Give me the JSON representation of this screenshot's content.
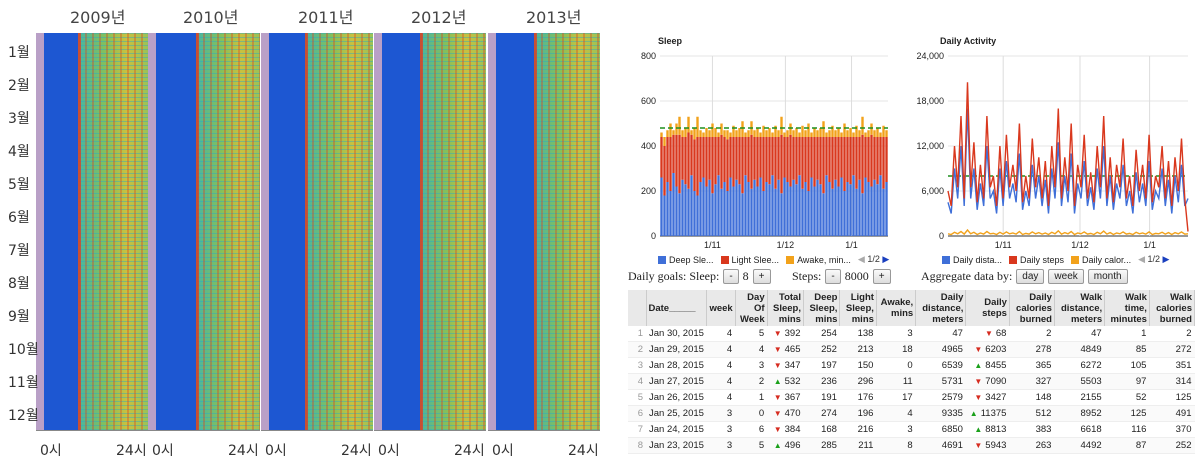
{
  "heatmap": {
    "years": [
      "2009년",
      "2010년",
      "2011년",
      "2012년",
      "2013년"
    ],
    "months": [
      "1월",
      "2월",
      "3월",
      "4월",
      "5월",
      "6월",
      "7월",
      "8월",
      "9월",
      "10월",
      "11월",
      "12월"
    ],
    "x_start": "0시",
    "x_end": "24시"
  },
  "chart_data": [
    {
      "type": "bar",
      "title": "Sleep",
      "stacked": true,
      "ylim": [
        0,
        800
      ],
      "yticks": [
        "800",
        "600",
        "400",
        "200",
        "0"
      ],
      "xticks": [
        "1/11",
        "1/12",
        "1/1"
      ],
      "goal_line": 480,
      "series": [
        {
          "name": "Deep Sle...",
          "color": "#3f6fd8",
          "values": [
            260,
            180,
            240,
            200,
            280,
            220,
            190,
            250,
            230,
            210,
            270,
            200,
            180,
            240,
            260,
            220,
            250,
            190,
            230,
            270,
            210,
            240,
            200,
            260,
            220,
            250,
            230,
            190,
            270,
            240,
            210,
            250,
            220,
            260,
            200,
            240,
            230,
            270,
            210,
            250,
            190,
            260,
            240,
            220,
            250,
            230,
            270,
            210,
            240,
            200,
            260,
            220,
            250,
            230,
            190,
            270,
            240,
            210,
            250,
            220,
            260,
            200,
            240,
            230,
            270,
            210,
            250,
            190,
            260,
            240,
            220,
            250,
            230,
            270,
            210,
            240
          ]
        },
        {
          "name": "Light Slee...",
          "color": "#d9381e",
          "values": [
            180,
            220,
            200,
            240,
            170,
            230,
            260,
            190,
            210,
            250,
            180,
            230,
            260,
            200,
            180,
            220,
            190,
            250,
            210,
            170,
            240,
            200,
            230,
            180,
            220,
            190,
            210,
            250,
            170,
            200,
            240,
            190,
            220,
            180,
            240,
            200,
            210,
            170,
            230,
            190,
            260,
            180,
            200,
            230,
            190,
            210,
            170,
            230,
            200,
            240,
            180,
            220,
            190,
            210,
            250,
            170,
            200,
            230,
            190,
            220,
            180,
            240,
            200,
            210,
            170,
            230,
            190,
            260,
            180,
            200,
            230,
            190,
            210,
            170,
            230,
            200
          ]
        },
        {
          "name": "Awake, min...",
          "color": "#f2a21b",
          "values": [
            20,
            40,
            30,
            60,
            20,
            50,
            80,
            30,
            40,
            70,
            20,
            50,
            90,
            30,
            20,
            40,
            30,
            60,
            40,
            20,
            50,
            30,
            40,
            20,
            50,
            30,
            40,
            70,
            20,
            30,
            60,
            30,
            40,
            20,
            50,
            30,
            40,
            20,
            50,
            30,
            80,
            20,
            30,
            50,
            30,
            40,
            20,
            50,
            30,
            60,
            20,
            40,
            30,
            40,
            70,
            20,
            30,
            50,
            30,
            40,
            20,
            60,
            30,
            40,
            20,
            50,
            30,
            80,
            20,
            30,
            50,
            30,
            40,
            20,
            50,
            30
          ]
        }
      ],
      "page": "1/2"
    },
    {
      "type": "line",
      "title": "Daily Activity",
      "ylim": [
        0,
        24000
      ],
      "yticks": [
        "24,000",
        "18,000",
        "12,000",
        "6,000",
        "0"
      ],
      "xticks": [
        "1/11",
        "1/12",
        "1/1"
      ],
      "goal_line": 8000,
      "series": [
        {
          "name": "Daily dista...",
          "color": "#3f6fd8",
          "values": [
            4500,
            3000,
            9000,
            5000,
            12000,
            4000,
            17000,
            5000,
            9000,
            3500,
            7000,
            4000,
            12000,
            5000,
            6000,
            3000,
            9000,
            4000,
            10000,
            5000,
            7000,
            4500,
            11000,
            3500,
            6000,
            4000,
            9500,
            5000,
            8000,
            4000,
            7500,
            3000,
            9000,
            5000,
            12500,
            4000,
            8000,
            4500,
            11000,
            3000,
            7000,
            5000,
            10000,
            4000,
            6500,
            3500,
            9000,
            5000,
            12000,
            4000,
            8000,
            3500,
            7000,
            5000,
            9500,
            4000,
            6000,
            3000,
            8500,
            4500,
            7000,
            4000,
            10000,
            3500,
            6000,
            5000,
            9000,
            4000,
            7500,
            3000,
            8000,
            4500,
            9500,
            4000,
            5000
          ]
        },
        {
          "name": "Daily steps",
          "color": "#d9381e",
          "values": [
            6000,
            4000,
            12000,
            6500,
            16000,
            5000,
            20500,
            6500,
            12500,
            4500,
            9500,
            5000,
            16000,
            6500,
            8000,
            4000,
            12000,
            5000,
            13500,
            6500,
            9500,
            6000,
            15000,
            4500,
            8000,
            5000,
            13000,
            6500,
            10500,
            5000,
            10000,
            4000,
            12000,
            6500,
            17000,
            5000,
            10500,
            6000,
            15000,
            4000,
            9500,
            6500,
            13500,
            5000,
            8500,
            4500,
            12000,
            6500,
            16000,
            5000,
            10500,
            4500,
            9500,
            6500,
            13000,
            5000,
            8000,
            4000,
            11500,
            6000,
            9500,
            5000,
            13500,
            4500,
            8000,
            6500,
            12000,
            5000,
            10000,
            4000,
            10500,
            6000,
            13000,
            5000,
            600
          ]
        },
        {
          "name": "Daily calor...",
          "color": "#f2a21b",
          "values": [
            300,
            200,
            500,
            300,
            600,
            250,
            800,
            300,
            500,
            200,
            400,
            250,
            600,
            300,
            350,
            200,
            500,
            250,
            550,
            300,
            400,
            250,
            600,
            200,
            350,
            250,
            550,
            300,
            450,
            250,
            400,
            200,
            500,
            300,
            700,
            250,
            450,
            300,
            600,
            200,
            400,
            300,
            550,
            250,
            350,
            200,
            500,
            300,
            650,
            250,
            450,
            200,
            400,
            300,
            550,
            250,
            350,
            200,
            500,
            300,
            400,
            250,
            550,
            200,
            350,
            300,
            500,
            250,
            450,
            200,
            450,
            300,
            550,
            250,
            300
          ]
        }
      ],
      "page": "1/2"
    }
  ],
  "controls": {
    "goals_label": "Daily goals: Sleep:",
    "sleep_minus": "-",
    "sleep_value": "8",
    "sleep_plus": "+",
    "steps_label": "Steps:",
    "steps_minus": "-",
    "steps_value": "8000",
    "steps_plus": "+",
    "aggregate_label": "Aggregate data by:",
    "agg_day": "day",
    "agg_week": "week",
    "agg_month": "month"
  },
  "table": {
    "headers": [
      "Date_____",
      "week",
      "Day Of Week",
      "Total Sleep, mins",
      "Deep Sleep, mins",
      "Light Sleep, mins",
      "Awake, mins",
      "Daily distance, meters",
      "Daily steps",
      "Daily calories burned",
      "Walk distance, meters",
      "Walk time, minutes",
      "Walk calories burned"
    ],
    "rows": [
      {
        "i": "1",
        "date": "Jan 30, 2015",
        "week": "4",
        "dow": "5",
        "ts_dir": "down",
        "total": "392",
        "deep": "254",
        "light": "138",
        "awake": "3",
        "dist": "47",
        "st_dir": "down",
        "steps": "68",
        "cal": "2",
        "wd": "47",
        "wt": "1",
        "wc": "2"
      },
      {
        "i": "2",
        "date": "Jan 29, 2015",
        "week": "4",
        "dow": "4",
        "ts_dir": "down",
        "total": "465",
        "deep": "252",
        "light": "213",
        "awake": "18",
        "dist": "4965",
        "st_dir": "down",
        "steps": "6203",
        "cal": "278",
        "wd": "4849",
        "wt": "85",
        "wc": "272"
      },
      {
        "i": "3",
        "date": "Jan 28, 2015",
        "week": "4",
        "dow": "3",
        "ts_dir": "down",
        "total": "347",
        "deep": "197",
        "light": "150",
        "awake": "0",
        "dist": "6539",
        "st_dir": "up",
        "steps": "8455",
        "cal": "365",
        "wd": "6272",
        "wt": "105",
        "wc": "351"
      },
      {
        "i": "4",
        "date": "Jan 27, 2015",
        "week": "4",
        "dow": "2",
        "ts_dir": "up",
        "total": "532",
        "deep": "236",
        "light": "296",
        "awake": "11",
        "dist": "5731",
        "st_dir": "down",
        "steps": "7090",
        "cal": "327",
        "wd": "5503",
        "wt": "97",
        "wc": "314"
      },
      {
        "i": "5",
        "date": "Jan 26, 2015",
        "week": "4",
        "dow": "1",
        "ts_dir": "down",
        "total": "367",
        "deep": "191",
        "light": "176",
        "awake": "17",
        "dist": "2579",
        "st_dir": "down",
        "steps": "3427",
        "cal": "148",
        "wd": "2155",
        "wt": "52",
        "wc": "125"
      },
      {
        "i": "6",
        "date": "Jan 25, 2015",
        "week": "3",
        "dow": "0",
        "ts_dir": "down",
        "total": "470",
        "deep": "274",
        "light": "196",
        "awake": "4",
        "dist": "9335",
        "st_dir": "up",
        "steps": "11375",
        "cal": "512",
        "wd": "8952",
        "wt": "125",
        "wc": "491"
      },
      {
        "i": "7",
        "date": "Jan 24, 2015",
        "week": "3",
        "dow": "6",
        "ts_dir": "down",
        "total": "384",
        "deep": "168",
        "light": "216",
        "awake": "3",
        "dist": "6850",
        "st_dir": "up",
        "steps": "8813",
        "cal": "383",
        "wd": "6618",
        "wt": "116",
        "wc": "370"
      },
      {
        "i": "8",
        "date": "Jan 23, 2015",
        "week": "3",
        "dow": "5",
        "ts_dir": "up",
        "total": "496",
        "deep": "285",
        "light": "211",
        "awake": "8",
        "dist": "4691",
        "st_dir": "down",
        "steps": "5943",
        "cal": "263",
        "wd": "4492",
        "wt": "87",
        "wc": "252"
      }
    ]
  }
}
